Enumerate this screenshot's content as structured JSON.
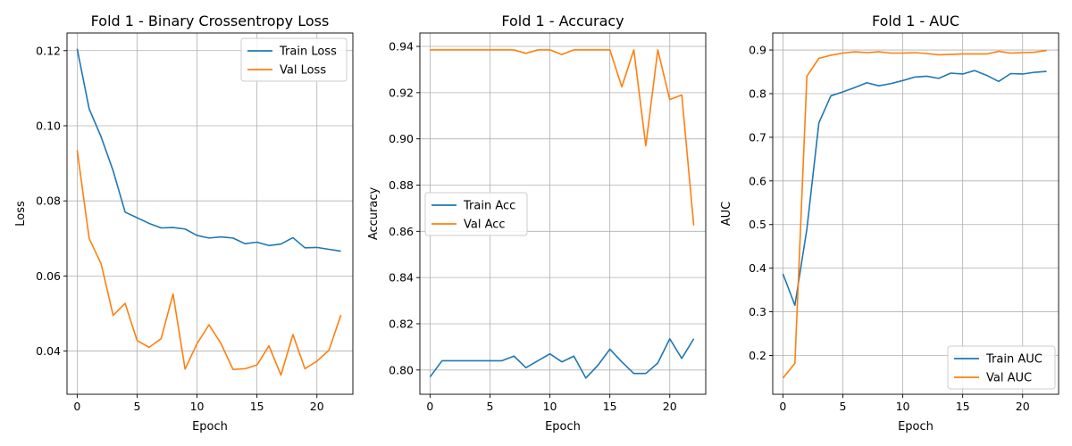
{
  "chart_data": [
    {
      "type": "line",
      "title": "Fold 1 - Binary Crossentropy Loss",
      "xlabel": "Epoch",
      "ylabel": "Loss",
      "xlim": [
        -0.85,
        23.0
      ],
      "ylim": [
        0.0285,
        0.1247
      ],
      "xticks": [
        0,
        5,
        10,
        15,
        20
      ],
      "yticks": [
        0.04,
        0.06,
        0.08,
        0.1,
        0.12
      ],
      "ytick_labels": [
        "0.04",
        "0.06",
        "0.08",
        "0.10",
        "0.12"
      ],
      "grid": true,
      "legend_position": "upper-right",
      "x": [
        0,
        1,
        2,
        3,
        4,
        5,
        6,
        7,
        8,
        9,
        10,
        11,
        12,
        13,
        14,
        15,
        16,
        17,
        18,
        19,
        20,
        21,
        22
      ],
      "series": [
        {
          "name": "Train Loss",
          "color": "#1f77b4",
          "values": [
            0.1205,
            0.1045,
            0.097,
            0.088,
            0.077,
            0.0755,
            0.074,
            0.0728,
            0.0729,
            0.0725,
            0.0708,
            0.0701,
            0.0704,
            0.0701,
            0.0686,
            0.069,
            0.0681,
            0.0685,
            0.0702,
            0.0675,
            0.0676,
            0.0671,
            0.0666
          ]
        },
        {
          "name": "Val Loss",
          "color": "#ff7f0e",
          "values": [
            0.0935,
            0.07,
            0.0632,
            0.0495,
            0.0527,
            0.0428,
            0.041,
            0.0433,
            0.0552,
            0.0352,
            0.042,
            0.047,
            0.042,
            0.0351,
            0.0353,
            0.0363,
            0.0414,
            0.0336,
            0.0444,
            0.0353,
            0.0373,
            0.0402,
            0.0496
          ]
        }
      ]
    },
    {
      "type": "line",
      "title": "Fold 1 - Accuracy",
      "xlabel": "Epoch",
      "ylabel": "Accuracy",
      "xlim": [
        -0.85,
        23.0
      ],
      "ylim": [
        0.7895,
        0.9458
      ],
      "xticks": [
        0,
        5,
        10,
        15,
        20
      ],
      "yticks": [
        0.8,
        0.82,
        0.84,
        0.86,
        0.88,
        0.9,
        0.92,
        0.94
      ],
      "ytick_labels": [
        "0.80",
        "0.82",
        "0.84",
        "0.86",
        "0.88",
        "0.90",
        "0.92",
        "0.94"
      ],
      "grid": true,
      "legend_position": "center-left",
      "x": [
        0,
        1,
        2,
        3,
        4,
        5,
        6,
        7,
        8,
        9,
        10,
        11,
        12,
        13,
        14,
        15,
        16,
        17,
        18,
        19,
        20,
        21,
        22
      ],
      "series": [
        {
          "name": "Train Acc",
          "color": "#1f77b4",
          "values": [
            0.797,
            0.804,
            0.804,
            0.804,
            0.804,
            0.804,
            0.804,
            0.806,
            0.801,
            0.804,
            0.807,
            0.8035,
            0.806,
            0.7965,
            0.802,
            0.809,
            0.8035,
            0.7985,
            0.7985,
            0.803,
            0.8135,
            0.805,
            0.8135
          ]
        },
        {
          "name": "Val Acc",
          "color": "#ff7f0e",
          "values": [
            0.9385,
            0.9385,
            0.9385,
            0.9385,
            0.9385,
            0.9385,
            0.9385,
            0.9385,
            0.937,
            0.9385,
            0.9385,
            0.9365,
            0.9385,
            0.9385,
            0.9385,
            0.9385,
            0.9225,
            0.9385,
            0.897,
            0.9385,
            0.917,
            0.919,
            0.8625
          ]
        }
      ]
    },
    {
      "type": "line",
      "title": "Fold 1 - AUC",
      "xlabel": "Epoch",
      "ylabel": "AUC",
      "xlim": [
        -0.85,
        23.0
      ],
      "ylim": [
        0.111,
        0.939
      ],
      "xticks": [
        0,
        5,
        10,
        15,
        20
      ],
      "yticks": [
        0.2,
        0.3,
        0.4,
        0.5,
        0.6,
        0.7,
        0.8,
        0.9
      ],
      "ytick_labels": [
        "0.2",
        "0.3",
        "0.4",
        "0.5",
        "0.6",
        "0.7",
        "0.8",
        "0.9"
      ],
      "grid": true,
      "legend_position": "lower-right",
      "x": [
        0,
        1,
        2,
        3,
        4,
        5,
        6,
        7,
        8,
        9,
        10,
        11,
        12,
        13,
        14,
        15,
        16,
        17,
        18,
        19,
        20,
        21,
        22
      ],
      "series": [
        {
          "name": "Train AUC",
          "color": "#1f77b4",
          "values": [
            0.387,
            0.315,
            0.49,
            0.733,
            0.795,
            0.804,
            0.814,
            0.825,
            0.818,
            0.823,
            0.83,
            0.838,
            0.84,
            0.835,
            0.847,
            0.845,
            0.853,
            0.842,
            0.828,
            0.846,
            0.845,
            0.849,
            0.851
          ]
        },
        {
          "name": "Val AUC",
          "color": "#ff7f0e",
          "values": [
            0.148,
            0.182,
            0.84,
            0.881,
            0.888,
            0.893,
            0.896,
            0.894,
            0.896,
            0.893,
            0.893,
            0.894,
            0.892,
            0.889,
            0.89,
            0.891,
            0.891,
            0.891,
            0.897,
            0.893,
            0.894,
            0.895,
            0.899
          ]
        }
      ]
    }
  ]
}
